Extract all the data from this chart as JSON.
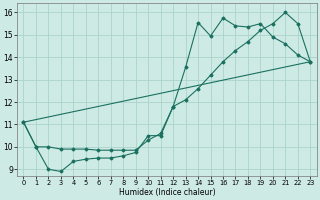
{
  "xlabel": "Humidex (Indice chaleur)",
  "bg_color": "#ceeae4",
  "grid_color": "#aad4cc",
  "line_color": "#1a7060",
  "xlim": [
    -0.5,
    23.5
  ],
  "ylim": [
    8.7,
    16.4
  ],
  "xticks": [
    0,
    1,
    2,
    3,
    4,
    5,
    6,
    7,
    8,
    9,
    10,
    11,
    12,
    13,
    14,
    15,
    16,
    17,
    18,
    19,
    20,
    21,
    22,
    23
  ],
  "yticks": [
    9,
    10,
    11,
    12,
    13,
    14,
    15,
    16
  ],
  "line1_x": [
    0,
    1,
    2,
    3,
    4,
    5,
    6,
    7,
    8,
    9,
    10,
    11,
    12,
    13,
    14,
    15,
    16,
    17,
    18,
    19,
    20,
    21,
    22,
    23
  ],
  "line1_y": [
    11.1,
    10.0,
    9.0,
    8.9,
    9.35,
    9.45,
    9.5,
    9.5,
    9.6,
    9.75,
    10.5,
    10.5,
    11.8,
    13.55,
    15.55,
    14.95,
    15.75,
    15.4,
    15.35,
    15.5,
    14.9,
    14.6,
    14.1,
    13.8
  ],
  "line2_x": [
    0,
    1,
    2,
    3,
    4,
    5,
    6,
    7,
    8,
    9,
    10,
    11,
    12,
    13,
    14,
    15,
    16,
    17,
    18,
    19,
    20,
    21,
    22,
    23
  ],
  "line2_y": [
    11.1,
    10.0,
    10.0,
    9.9,
    9.9,
    9.9,
    9.85,
    9.85,
    9.85,
    9.85,
    10.3,
    10.6,
    11.8,
    12.1,
    12.6,
    13.2,
    13.8,
    14.3,
    14.7,
    15.2,
    15.5,
    16.0,
    15.5,
    13.8
  ],
  "line3_x": [
    0,
    23
  ],
  "line3_y": [
    11.1,
    13.8
  ]
}
